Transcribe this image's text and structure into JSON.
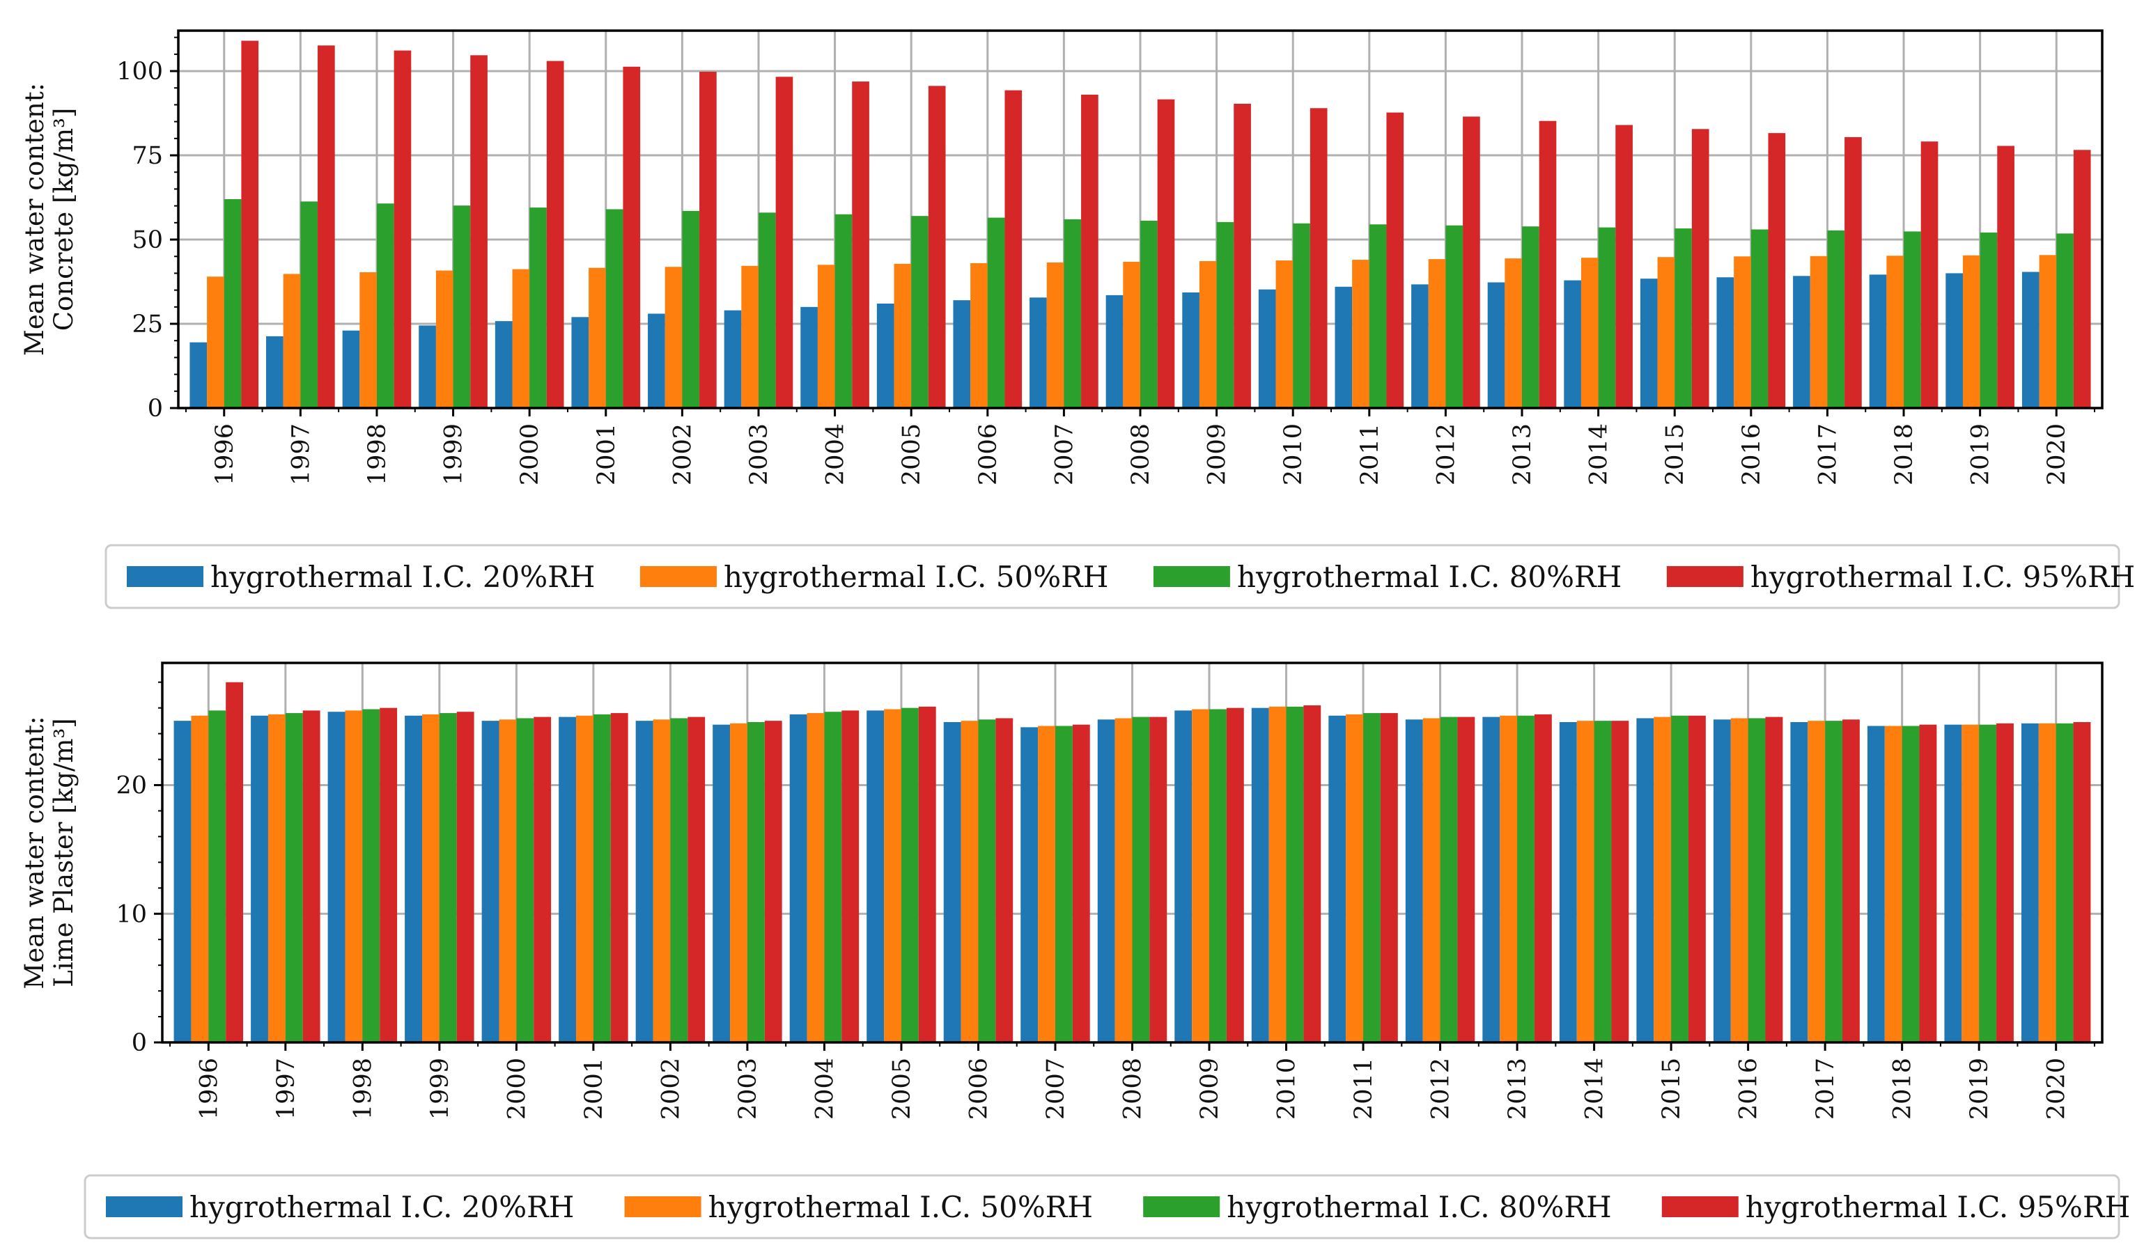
{
  "colors": {
    "series": [
      "#1f77b4",
      "#ff7f0e",
      "#2ca02c",
      "#d62728"
    ],
    "grid": "#b0b0b0",
    "axis": "#000000",
    "legend_border": "#cccccc"
  },
  "chart_data": [
    {
      "type": "bar",
      "title": "",
      "ylabel_lines": [
        "Mean water content:",
        "Concrete [kg/m³]"
      ],
      "xlabel": "",
      "ylim": [
        0,
        112
      ],
      "yticks": [
        0,
        25,
        50,
        75,
        100
      ],
      "grid": true,
      "legend_position": "below",
      "categories": [
        "1996",
        "1997",
        "1998",
        "1999",
        "2000",
        "2001",
        "2002",
        "2003",
        "2004",
        "2005",
        "2006",
        "2007",
        "2008",
        "2009",
        "2010",
        "2011",
        "2012",
        "2013",
        "2014",
        "2015",
        "2016",
        "2017",
        "2018",
        "2019",
        "2020"
      ],
      "series": [
        {
          "name": "hygrothermal I.C. 20%RH",
          "values": [
            19.5,
            21.3,
            23.0,
            24.5,
            25.8,
            27.0,
            28.0,
            29.0,
            30.0,
            31.0,
            32.0,
            32.8,
            33.5,
            34.3,
            35.2,
            36.0,
            36.7,
            37.3,
            37.9,
            38.4,
            38.8,
            39.2,
            39.6,
            40.0,
            40.4
          ]
        },
        {
          "name": "hygrothermal I.C. 50%RH",
          "values": [
            39.0,
            39.8,
            40.3,
            40.8,
            41.2,
            41.6,
            41.9,
            42.2,
            42.5,
            42.8,
            43.0,
            43.2,
            43.4,
            43.6,
            43.8,
            44.0,
            44.2,
            44.4,
            44.6,
            44.8,
            45.0,
            45.1,
            45.2,
            45.3,
            45.4
          ]
        },
        {
          "name": "hygrothermal I.C. 80%RH",
          "values": [
            62.0,
            61.3,
            60.7,
            60.1,
            59.5,
            59.0,
            58.5,
            58.0,
            57.5,
            57.0,
            56.5,
            56.0,
            55.6,
            55.2,
            54.8,
            54.5,
            54.2,
            53.9,
            53.6,
            53.3,
            53.0,
            52.7,
            52.4,
            52.1,
            51.8
          ]
        },
        {
          "name": "hygrothermal I.C. 95%RH",
          "values": [
            109.0,
            107.6,
            106.1,
            104.7,
            103.0,
            101.3,
            99.8,
            98.3,
            96.9,
            95.6,
            94.3,
            93.0,
            91.6,
            90.3,
            89.0,
            87.7,
            86.5,
            85.2,
            84.0,
            82.8,
            81.6,
            80.4,
            79.1,
            77.8,
            76.6
          ]
        }
      ]
    },
    {
      "type": "bar",
      "title": "",
      "ylabel_lines": [
        "Mean water content:",
        "Lime Plaster [kg/m³]"
      ],
      "xlabel": "",
      "ylim": [
        0,
        29.5
      ],
      "yticks": [
        0,
        10,
        20
      ],
      "grid": true,
      "legend_position": "below",
      "categories": [
        "1996",
        "1997",
        "1998",
        "1999",
        "2000",
        "2001",
        "2002",
        "2003",
        "2004",
        "2005",
        "2006",
        "2007",
        "2008",
        "2009",
        "2010",
        "2011",
        "2012",
        "2013",
        "2014",
        "2015",
        "2016",
        "2017",
        "2018",
        "2019",
        "2020"
      ],
      "series": [
        {
          "name": "hygrothermal I.C. 20%RH",
          "values": [
            25.0,
            25.4,
            25.7,
            25.4,
            25.0,
            25.3,
            25.0,
            24.7,
            25.5,
            25.8,
            24.9,
            24.5,
            25.1,
            25.8,
            26.0,
            25.4,
            25.1,
            25.3,
            24.9,
            25.2,
            25.1,
            24.9,
            24.6,
            24.7,
            24.8
          ]
        },
        {
          "name": "hygrothermal I.C. 50%RH",
          "values": [
            25.4,
            25.5,
            25.8,
            25.5,
            25.1,
            25.4,
            25.1,
            24.8,
            25.6,
            25.9,
            25.0,
            24.6,
            25.2,
            25.9,
            26.1,
            25.5,
            25.2,
            25.4,
            25.0,
            25.3,
            25.2,
            25.0,
            24.6,
            24.7,
            24.8
          ]
        },
        {
          "name": "hygrothermal I.C. 80%RH",
          "values": [
            25.8,
            25.6,
            25.9,
            25.6,
            25.2,
            25.5,
            25.2,
            24.9,
            25.7,
            26.0,
            25.1,
            24.6,
            25.3,
            25.9,
            26.1,
            25.6,
            25.3,
            25.4,
            25.0,
            25.4,
            25.2,
            25.0,
            24.6,
            24.7,
            24.8
          ]
        },
        {
          "name": "hygrothermal I.C. 95%RH",
          "values": [
            28.0,
            25.8,
            26.0,
            25.7,
            25.3,
            25.6,
            25.3,
            25.0,
            25.8,
            26.1,
            25.2,
            24.7,
            25.3,
            26.0,
            26.2,
            25.6,
            25.3,
            25.5,
            25.0,
            25.4,
            25.3,
            25.1,
            24.7,
            24.8,
            24.9
          ]
        }
      ]
    }
  ]
}
